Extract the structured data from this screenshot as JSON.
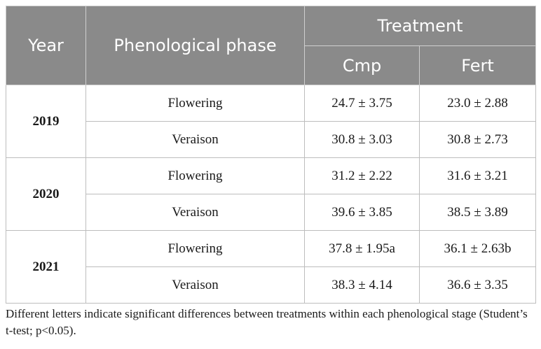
{
  "header": {
    "year": "Year",
    "phase": "Phenological phase",
    "treatment": "Treatment",
    "cmp": "Cmp",
    "fert": "Fert"
  },
  "rows": [
    {
      "year": "2019",
      "phases": [
        {
          "phase": "Flowering",
          "cmp": "24.7 ± 3.75",
          "fert": "23.0 ± 2.88"
        },
        {
          "phase": "Veraison",
          "cmp": "30.8 ± 3.03",
          "fert": "30.8 ± 2.73"
        }
      ]
    },
    {
      "year": "2020",
      "phases": [
        {
          "phase": "Flowering",
          "cmp": "31.2 ± 2.22",
          "fert": "31.6 ± 3.21"
        },
        {
          "phase": "Veraison",
          "cmp": "39.6 ± 3.85",
          "fert": "38.5 ± 3.89"
        }
      ]
    },
    {
      "year": "2021",
      "phases": [
        {
          "phase": "Flowering",
          "cmp": "37.8 ± 1.95a",
          "fert": "36.1 ± 2.63b"
        },
        {
          "phase": "Veraison",
          "cmp": "38.3 ± 4.14",
          "fert": "36.6 ± 3.35"
        }
      ]
    }
  ],
  "footnote": "Different letters indicate significant differences between treatments within each phenological stage (Student’s t-test; p<0.05).",
  "colors": {
    "header_bg": "#8a8a8a",
    "header_text": "#ffffff",
    "border": "#bdbdbd"
  }
}
